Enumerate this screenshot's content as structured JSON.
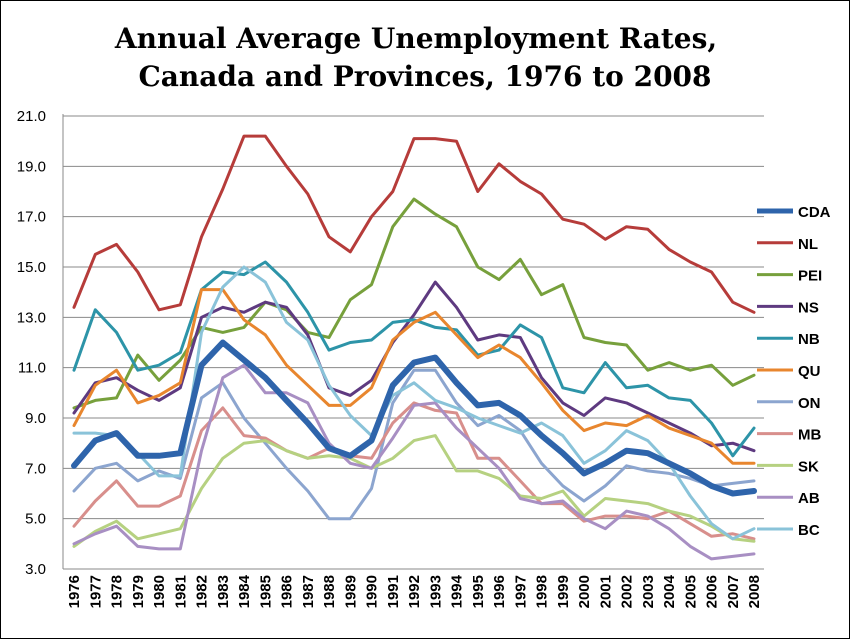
{
  "chart_data": {
    "type": "line",
    "title": "Annual Average Unemployment Rates,",
    "subtitle": "Canada and Provinces, 1976 to 2008",
    "xlabel": "",
    "ylabel": "",
    "ylim": [
      3.0,
      21.0
    ],
    "yticks": [
      "21.0",
      "19.0",
      "17.0",
      "15.0",
      "13.0",
      "11.0",
      "9.0",
      "7.0",
      "5.0",
      "3.0"
    ],
    "ytick_values": [
      21,
      19,
      17,
      15,
      13,
      11,
      9,
      7,
      5,
      3
    ],
    "grid": "horizontal",
    "legend_position": "right",
    "x": [
      "1976",
      "1977",
      "1978",
      "1979",
      "1980",
      "1981",
      "1982",
      "1983",
      "1984",
      "1985",
      "1986",
      "1987",
      "1988",
      "1989",
      "1990",
      "1991",
      "1992",
      "1993",
      "1994",
      "1995",
      "1996",
      "1997",
      "1998",
      "1999",
      "2000",
      "2001",
      "2002",
      "2003",
      "2004",
      "2005",
      "2006",
      "2007",
      "2008"
    ],
    "series": [
      {
        "name": "CDA",
        "color": "#2e64ab",
        "emphasis": true,
        "values": [
          7.1,
          8.1,
          8.4,
          7.5,
          7.5,
          7.6,
          11.1,
          12.0,
          11.3,
          10.6,
          9.7,
          8.8,
          7.8,
          7.5,
          8.1,
          10.3,
          11.2,
          11.4,
          10.4,
          9.5,
          9.6,
          9.1,
          8.3,
          7.6,
          6.8,
          7.2,
          7.7,
          7.6,
          7.2,
          6.8,
          6.3,
          6.0,
          6.1
        ]
      },
      {
        "name": "NL",
        "color": "#b63c3a",
        "values": [
          13.4,
          15.5,
          15.9,
          14.8,
          13.3,
          13.5,
          16.2,
          18.1,
          20.2,
          20.2,
          19.0,
          17.9,
          16.2,
          15.6,
          17.0,
          18.0,
          20.1,
          20.1,
          20.0,
          18.0,
          19.1,
          18.4,
          17.9,
          16.9,
          16.7,
          16.1,
          16.6,
          16.5,
          15.7,
          15.2,
          14.8,
          13.6,
          13.2
        ]
      },
      {
        "name": "PEI",
        "color": "#77a03c",
        "values": [
          9.4,
          9.7,
          9.8,
          11.5,
          10.5,
          11.3,
          12.6,
          12.4,
          12.6,
          13.6,
          13.3,
          12.4,
          12.2,
          13.7,
          14.3,
          16.6,
          17.7,
          17.1,
          16.6,
          15.0,
          14.5,
          15.3,
          13.9,
          14.3,
          12.2,
          12.0,
          11.9,
          10.9,
          11.2,
          10.9,
          11.1,
          10.3,
          10.7
        ]
      },
      {
        "name": "NS",
        "color": "#5e3a80",
        "values": [
          9.2,
          10.4,
          10.6,
          10.1,
          9.7,
          10.2,
          13.0,
          13.4,
          13.2,
          13.6,
          13.4,
          12.3,
          10.2,
          9.9,
          10.5,
          12.0,
          13.1,
          14.4,
          13.4,
          12.1,
          12.3,
          12.2,
          10.6,
          9.6,
          9.1,
          9.8,
          9.6,
          9.2,
          8.8,
          8.4,
          7.9,
          8.0,
          7.7
        ]
      },
      {
        "name": "NB",
        "color": "#2d94a8",
        "values": [
          10.9,
          13.3,
          12.4,
          10.9,
          11.1,
          11.6,
          14.1,
          14.8,
          14.7,
          15.2,
          14.4,
          13.2,
          11.7,
          12.0,
          12.1,
          12.8,
          12.9,
          12.6,
          12.5,
          11.5,
          11.7,
          12.7,
          12.2,
          10.2,
          10.0,
          11.2,
          10.2,
          10.3,
          9.8,
          9.7,
          8.8,
          7.5,
          8.6
        ]
      },
      {
        "name": "QU",
        "color": "#e8862e",
        "values": [
          8.7,
          10.3,
          10.9,
          9.6,
          9.9,
          10.4,
          14.1,
          14.1,
          12.9,
          12.3,
          11.1,
          10.3,
          9.5,
          9.5,
          10.2,
          12.1,
          12.8,
          13.2,
          12.3,
          11.4,
          11.9,
          11.4,
          10.4,
          9.3,
          8.5,
          8.8,
          8.7,
          9.1,
          8.6,
          8.3,
          8.0,
          7.2,
          7.2
        ]
      },
      {
        "name": "ON",
        "color": "#8ca5cf",
        "values": [
          6.1,
          7.0,
          7.2,
          6.5,
          6.9,
          6.6,
          9.8,
          10.4,
          9.0,
          8.0,
          7.0,
          6.1,
          5.0,
          5.0,
          6.2,
          9.6,
          10.9,
          10.9,
          9.6,
          8.7,
          9.1,
          8.5,
          7.2,
          6.3,
          5.7,
          6.3,
          7.1,
          6.9,
          6.8,
          6.6,
          6.3,
          6.4,
          6.5
        ]
      },
      {
        "name": "MB",
        "color": "#d88f8c",
        "values": [
          4.7,
          5.7,
          6.5,
          5.5,
          5.5,
          5.9,
          8.5,
          9.4,
          8.3,
          8.2,
          7.7,
          7.4,
          7.8,
          7.5,
          7.4,
          8.8,
          9.6,
          9.3,
          9.2,
          7.4,
          7.4,
          6.5,
          5.6,
          5.6,
          4.9,
          5.1,
          5.1,
          5.0,
          5.3,
          4.8,
          4.3,
          4.4,
          4.2
        ]
      },
      {
        "name": "SK",
        "color": "#b6d181",
        "values": [
          3.9,
          4.5,
          4.9,
          4.2,
          4.4,
          4.6,
          6.2,
          7.4,
          8.0,
          8.1,
          7.7,
          7.4,
          7.5,
          7.4,
          7.0,
          7.4,
          8.1,
          8.3,
          6.9,
          6.9,
          6.6,
          5.9,
          5.8,
          6.1,
          5.1,
          5.8,
          5.7,
          5.6,
          5.3,
          5.1,
          4.7,
          4.2,
          4.1
        ]
      },
      {
        "name": "AB",
        "color": "#a88fc3",
        "values": [
          4.0,
          4.4,
          4.7,
          3.9,
          3.8,
          3.8,
          7.7,
          10.6,
          11.1,
          10.0,
          10.0,
          9.6,
          8.0,
          7.2,
          7.0,
          8.2,
          9.5,
          9.6,
          8.6,
          7.8,
          7.0,
          5.8,
          5.6,
          5.7,
          5.0,
          4.6,
          5.3,
          5.1,
          4.6,
          3.9,
          3.4,
          3.5,
          3.6
        ]
      },
      {
        "name": "BC",
        "color": "#8ac3d9",
        "values": [
          8.4,
          8.4,
          8.3,
          7.6,
          6.7,
          6.7,
          12.4,
          14.2,
          15.0,
          14.4,
          12.8,
          12.1,
          10.3,
          9.1,
          8.3,
          9.9,
          10.4,
          9.7,
          9.4,
          9.0,
          8.7,
          8.4,
          8.8,
          8.3,
          7.2,
          7.7,
          8.5,
          8.1,
          7.2,
          5.9,
          4.8,
          4.2,
          4.6
        ]
      }
    ]
  }
}
